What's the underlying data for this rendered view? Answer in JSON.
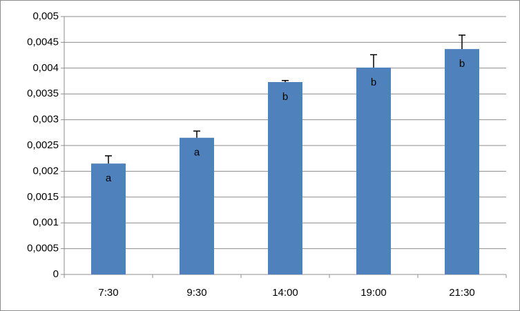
{
  "chart_data": {
    "type": "bar",
    "categories": [
      "7:30",
      "9:30",
      "14:00",
      "19:00",
      "21:30"
    ],
    "values": [
      0.00215,
      0.00265,
      0.00373,
      0.00401,
      0.00437
    ],
    "errors": [
      0.00015,
      0.00013,
      3e-05,
      0.00025,
      0.00027
    ],
    "annotations": [
      "a",
      "a",
      "b",
      "b",
      "b"
    ],
    "color": "#4f81bd",
    "ylim": [
      0,
      0.005
    ],
    "yticks": [
      0,
      {
        "value": 0.0005,
        "label": "0,0005"
      },
      {
        "value": 0.001,
        "label": "0,001"
      },
      {
        "value": 0.0015,
        "label": "0,0015"
      },
      {
        "value": 0.002,
        "label": "0,002"
      },
      {
        "value": 0.0025,
        "label": "0,0025"
      },
      {
        "value": 0.003,
        "label": "0,003"
      },
      {
        "value": 0.0035,
        "label": "0,0035"
      },
      {
        "value": 0.004,
        "label": "0,004"
      },
      {
        "value": 0.0045,
        "label": "0,0045"
      },
      {
        "value": 0.005,
        "label": "0,005"
      }
    ],
    "grid": true
  }
}
